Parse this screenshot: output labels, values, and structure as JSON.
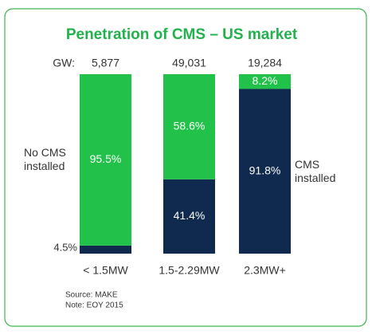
{
  "chart_data": {
    "type": "stacked_bar_100",
    "title": "Penetration of CMS – US market",
    "total_prefix": "GW:",
    "total_labels": [
      "5,877",
      "49,031",
      "19,284"
    ],
    "categories": [
      "< 1.5MW",
      "1.5-2.29MW",
      "2.3MW+"
    ],
    "series": [
      {
        "name": "CMS installed",
        "color": "#0f2a4e",
        "values": [
          4.5,
          41.4,
          91.8
        ],
        "value_labels": [
          "4.5%",
          "41.4%",
          "91.8%"
        ]
      },
      {
        "name": "No CMS installed",
        "color": "#22c24a",
        "values": [
          95.5,
          58.6,
          8.2
        ],
        "value_labels": [
          "95.5%",
          "58.6%",
          "8.2%"
        ]
      }
    ],
    "ylim": [
      0,
      100
    ],
    "notes": [
      "Source: MAKE",
      "Note: EOY 2015"
    ]
  }
}
